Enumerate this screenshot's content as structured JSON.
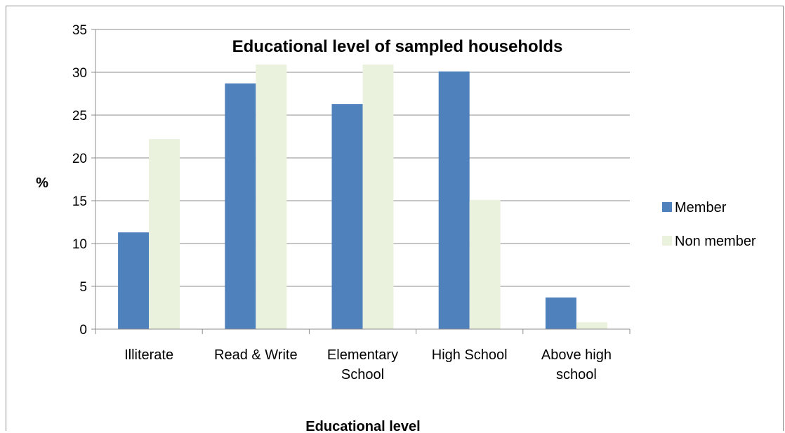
{
  "chart_data": {
    "type": "bar",
    "title": "Educational level of sampled households",
    "xlabel": "Educational level",
    "ylabel": "%",
    "ylim": [
      0,
      35
    ],
    "yticks": [
      0,
      5,
      10,
      15,
      20,
      25,
      30,
      35
    ],
    "grid": true,
    "legend_position": "right",
    "categories": [
      [
        "Illiterate"
      ],
      [
        "Read & Write"
      ],
      [
        "Elementary",
        "School"
      ],
      [
        "High School"
      ],
      [
        "Above high",
        "school"
      ]
    ],
    "series": [
      {
        "name": "Member",
        "color": "#4f81bd",
        "values": [
          11.3,
          28.7,
          26.3,
          30.1,
          3.7
        ]
      },
      {
        "name": "Non member",
        "color": "#eaf1dd",
        "values": [
          22.2,
          30.9,
          30.9,
          15.1,
          0.8
        ]
      }
    ]
  }
}
